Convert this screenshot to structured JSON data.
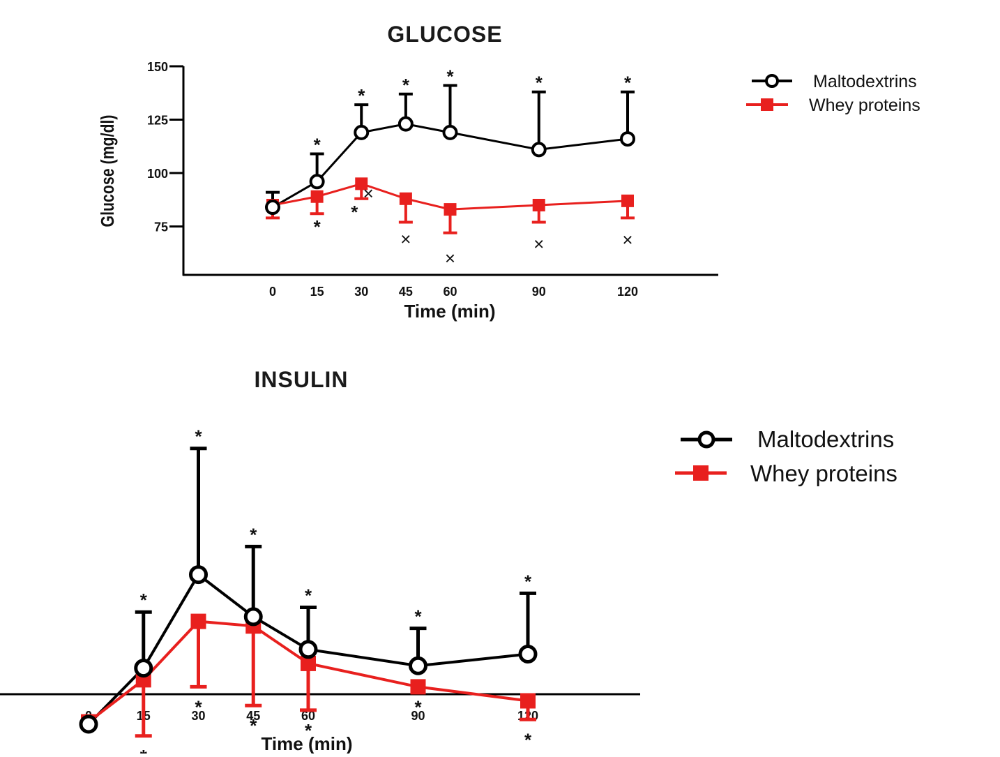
{
  "chart_data": [
    {
      "type": "line",
      "title": "GLUCOSE",
      "xlabel": "Time (min)",
      "ylabel": "Glucose (mg/dl)",
      "x": [
        0,
        15,
        30,
        45,
        60,
        90,
        120
      ],
      "x_tick_labels": [
        "0",
        "15",
        "30",
        "45",
        "60",
        "90",
        "120"
      ],
      "y_ticks": [
        75,
        100,
        125,
        150
      ],
      "y_tick_labels": [
        "75",
        "100",
        "125",
        "150"
      ],
      "ylim": [
        52,
        150
      ],
      "legend_position": "right",
      "series": [
        {
          "name": "Maltodextrins",
          "color": "#000000",
          "marker": "open-circle",
          "values": [
            84,
            96,
            119,
            123,
            119,
            111,
            116
          ],
          "error_upper": [
            7,
            13,
            13,
            14,
            22,
            27,
            22
          ],
          "significance_above": [
            "",
            "*",
            "*",
            "*",
            "*",
            "*",
            "*"
          ]
        },
        {
          "name": "Whey proteins",
          "color": "#e8201e",
          "marker": "filled-square",
          "values": [
            85,
            89,
            95,
            88,
            83,
            85,
            87
          ],
          "error_lower": [
            6,
            8,
            7,
            11,
            11,
            8,
            8
          ],
          "significance_below": [
            "",
            "*",
            "*",
            "",
            "",
            "",
            ""
          ],
          "cross_marks_below": [
            "",
            "",
            "×",
            "×",
            "×",
            "×",
            "×"
          ]
        }
      ]
    },
    {
      "type": "line",
      "title": "INSULIN",
      "xlabel": "Time (min)",
      "x": [
        0,
        15,
        30,
        45,
        60,
        90,
        120
      ],
      "x_tick_labels": [
        "0",
        "15",
        "30",
        "45",
        "60",
        "90",
        "120"
      ],
      "ylim": [
        0,
        100
      ],
      "legend_position": "right",
      "series": [
        {
          "name": "Maltodextrins",
          "color": "#000000",
          "marker": "open-circle",
          "values": [
            10,
            22,
            42,
            33,
            26,
            22.5,
            25
          ],
          "error_upper": [
            0,
            12,
            27,
            15,
            9,
            8,
            13
          ],
          "significance_above": [
            "",
            "*",
            "*",
            "*",
            "*",
            "*",
            "*"
          ]
        },
        {
          "name": "Whey proteins",
          "color": "#e8201e",
          "marker": "filled-square",
          "values": [
            10.5,
            19.5,
            32,
            31,
            23,
            18,
            15
          ],
          "error_lower": [
            0,
            12,
            14,
            17,
            10,
            0,
            4
          ],
          "significance_below": [
            "",
            "*",
            "*",
            "*",
            "*",
            "*",
            "*"
          ]
        }
      ]
    }
  ]
}
